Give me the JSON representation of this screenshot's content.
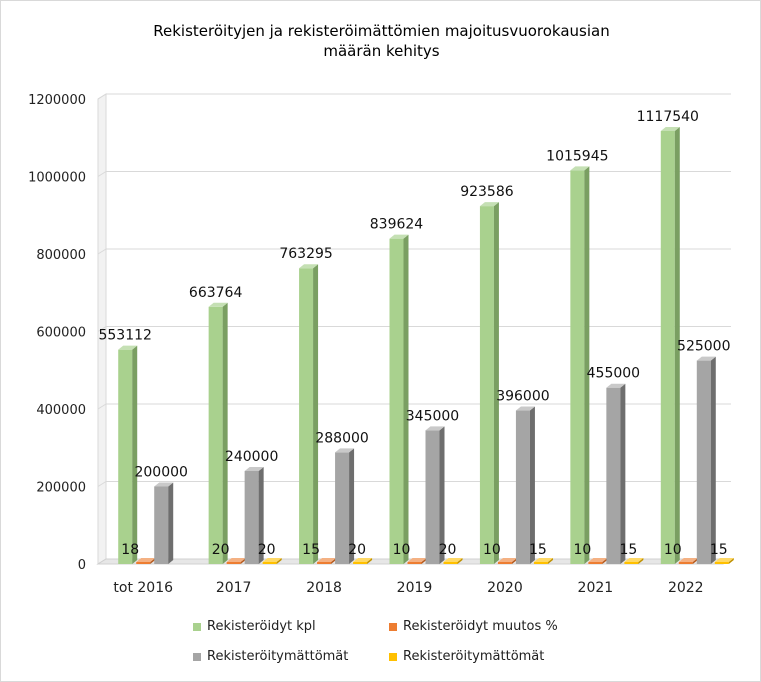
{
  "chart_data": {
    "type": "bar",
    "title_lines": [
      "Rekisteröityjen ja rekisteröimättömien majoitusvuorokausian",
      "määrän kehitys"
    ],
    "categories": [
      "tot 2016",
      "2017",
      "2018",
      "2019",
      "2020",
      "2021",
      "2022"
    ],
    "y_ticks": [
      "0",
      "200000",
      "400000",
      "600000",
      "800000",
      "1000000",
      "1200000"
    ],
    "ylim": [
      0,
      1200000
    ],
    "grid": true,
    "legend_position": "bottom",
    "series": [
      {
        "name": "Rekisteröidyt kpl",
        "color": "#a9d18e",
        "values": [
          553112,
          663764,
          763295,
          839624,
          923586,
          1015945,
          1117540
        ]
      },
      {
        "name": "Rekisteröidyt muutos %",
        "color": "#ed7d31",
        "values": [
          18,
          20,
          15,
          10,
          10,
          10,
          10
        ]
      },
      {
        "name": "Rekisteröitymättömät",
        "color": "#a5a5a5",
        "values": [
          200000,
          240000,
          288000,
          345000,
          396000,
          455000,
          525000
        ]
      },
      {
        "name": "Rekisteröitymättömät",
        "color": "#ffc000",
        "values": [
          null,
          20,
          20,
          20,
          15,
          15,
          15
        ]
      }
    ]
  }
}
